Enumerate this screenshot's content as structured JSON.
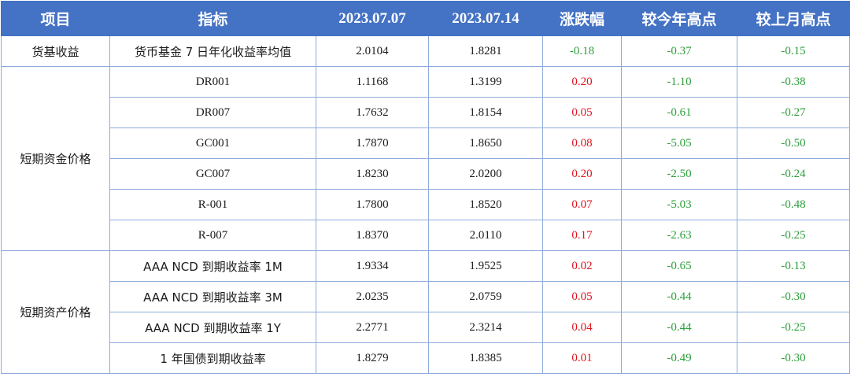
{
  "colors": {
    "header_bg": "#4472c4",
    "up": "#e0141e",
    "down": "#2e9e3c",
    "border": "#8eaadb"
  },
  "headers": [
    "项目",
    "指标",
    "2023.07.07",
    "2023.07.14",
    "涨跌幅",
    "较今年高点",
    "较上月高点"
  ],
  "groups": [
    {
      "category": "货基收益",
      "rows": [
        {
          "indicator": "货币基金 7 日年化收益率均值",
          "v1": "2.0104",
          "v2": "1.8281",
          "change": "-0.18",
          "vs_year_high": "-0.37",
          "vs_month_high": "-0.15",
          "direction": "down"
        }
      ]
    },
    {
      "category": "短期资金价格",
      "rows": [
        {
          "indicator": "DR001",
          "v1": "1.1168",
          "v2": "1.3199",
          "change": "0.20",
          "vs_year_high": "-1.10",
          "vs_month_high": "-0.38",
          "direction": "up"
        },
        {
          "indicator": "DR007",
          "v1": "1.7632",
          "v2": "1.8154",
          "change": "0.05",
          "vs_year_high": "-0.61",
          "vs_month_high": "-0.27",
          "direction": "up"
        },
        {
          "indicator": "GC001",
          "v1": "1.7870",
          "v2": "1.8650",
          "change": "0.08",
          "vs_year_high": "-5.05",
          "vs_month_high": "-0.50",
          "direction": "up"
        },
        {
          "indicator": "GC007",
          "v1": "1.8230",
          "v2": "2.0200",
          "change": "0.20",
          "vs_year_high": "-2.50",
          "vs_month_high": "-0.24",
          "direction": "up"
        },
        {
          "indicator": "R-001",
          "v1": "1.7800",
          "v2": "1.8520",
          "change": "0.07",
          "vs_year_high": "-5.03",
          "vs_month_high": "-0.48",
          "direction": "up"
        },
        {
          "indicator": "R-007",
          "v1": "1.8370",
          "v2": "2.0110",
          "change": "0.17",
          "vs_year_high": "-2.63",
          "vs_month_high": "-0.25",
          "direction": "up"
        }
      ]
    },
    {
      "category": "短期资产价格",
      "rows": [
        {
          "indicator": "AAA NCD 到期收益率 1M",
          "v1": "1.9334",
          "v2": "1.9525",
          "change": "0.02",
          "vs_year_high": "-0.65",
          "vs_month_high": "-0.13",
          "direction": "up"
        },
        {
          "indicator": "AAA NCD 到期收益率 3M",
          "v1": "2.0235",
          "v2": "2.0759",
          "change": "0.05",
          "vs_year_high": "-0.44",
          "vs_month_high": "-0.30",
          "direction": "up"
        },
        {
          "indicator": "AAA NCD 到期收益率 1Y",
          "v1": "2.2771",
          "v2": "2.3214",
          "change": "0.04",
          "vs_year_high": "-0.44",
          "vs_month_high": "-0.25",
          "direction": "up"
        },
        {
          "indicator": "1 年国债到期收益率",
          "v1": "1.8279",
          "v2": "1.8385",
          "change": "0.01",
          "vs_year_high": "-0.49",
          "vs_month_high": "-0.30",
          "direction": "up"
        }
      ]
    }
  ]
}
